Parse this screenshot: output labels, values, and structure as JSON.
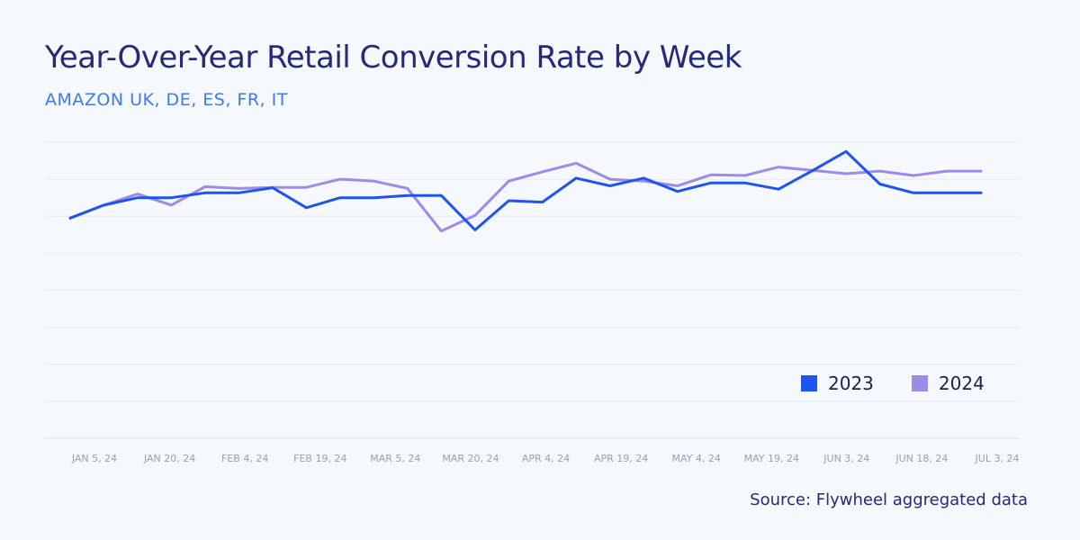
{
  "page": {
    "title": "Year-Over-Year Retail Conversion Rate by Week",
    "subtitle": "AMAZON UK, DE, ES, FR, IT",
    "source": "Source: Flywheel aggregated data"
  },
  "colors": {
    "series_2023": "#1F54F0",
    "series_2024": "#9D8BEA",
    "grid": "#E4E8F2",
    "tick": "#9AA0B4"
  },
  "chart_data": {
    "type": "line",
    "title": "Year-Over-Year Retail Conversion Rate by Week",
    "subtitle": "AMAZON UK, DE, ES, FR, IT",
    "xlabel": "",
    "ylabel": "",
    "ylim": [
      0,
      8
    ],
    "grid": true,
    "gridlines": 9,
    "legend_position": "bottom-right",
    "x_tick_labels": [
      "JAN 5, 24",
      "JAN 20, 24",
      "FEB 4, 24",
      "FEB 19, 24",
      "MAR 5, 24",
      "MAR 20, 24",
      "APR 4, 24",
      "APR 19, 24",
      "MAY 4, 24",
      "MAY 19, 24",
      "JUN 3, 24",
      "JUN 18, 24",
      "JUL 3, 24"
    ],
    "points_per_series": 28,
    "series": [
      {
        "name": "2023",
        "color": "#1F54F0",
        "values": [
          5.95,
          6.3,
          6.5,
          6.5,
          6.63,
          6.63,
          6.77,
          6.23,
          6.5,
          6.5,
          6.56,
          6.56,
          5.63,
          6.42,
          6.38,
          7.03,
          6.82,
          7.03,
          6.67,
          6.9,
          6.9,
          6.73,
          7.23,
          7.75,
          6.87,
          6.63,
          6.63,
          6.63
        ]
      },
      {
        "name": "2024",
        "color": "#9D8BEA",
        "values": [
          5.95,
          6.3,
          6.6,
          6.3,
          6.8,
          6.75,
          6.78,
          6.78,
          7.0,
          6.95,
          6.75,
          5.6,
          6.02,
          6.95,
          7.2,
          7.43,
          7.0,
          6.95,
          6.82,
          7.12,
          7.1,
          7.33,
          7.24,
          7.15,
          7.22,
          7.1,
          7.22,
          7.22
        ]
      }
    ]
  }
}
